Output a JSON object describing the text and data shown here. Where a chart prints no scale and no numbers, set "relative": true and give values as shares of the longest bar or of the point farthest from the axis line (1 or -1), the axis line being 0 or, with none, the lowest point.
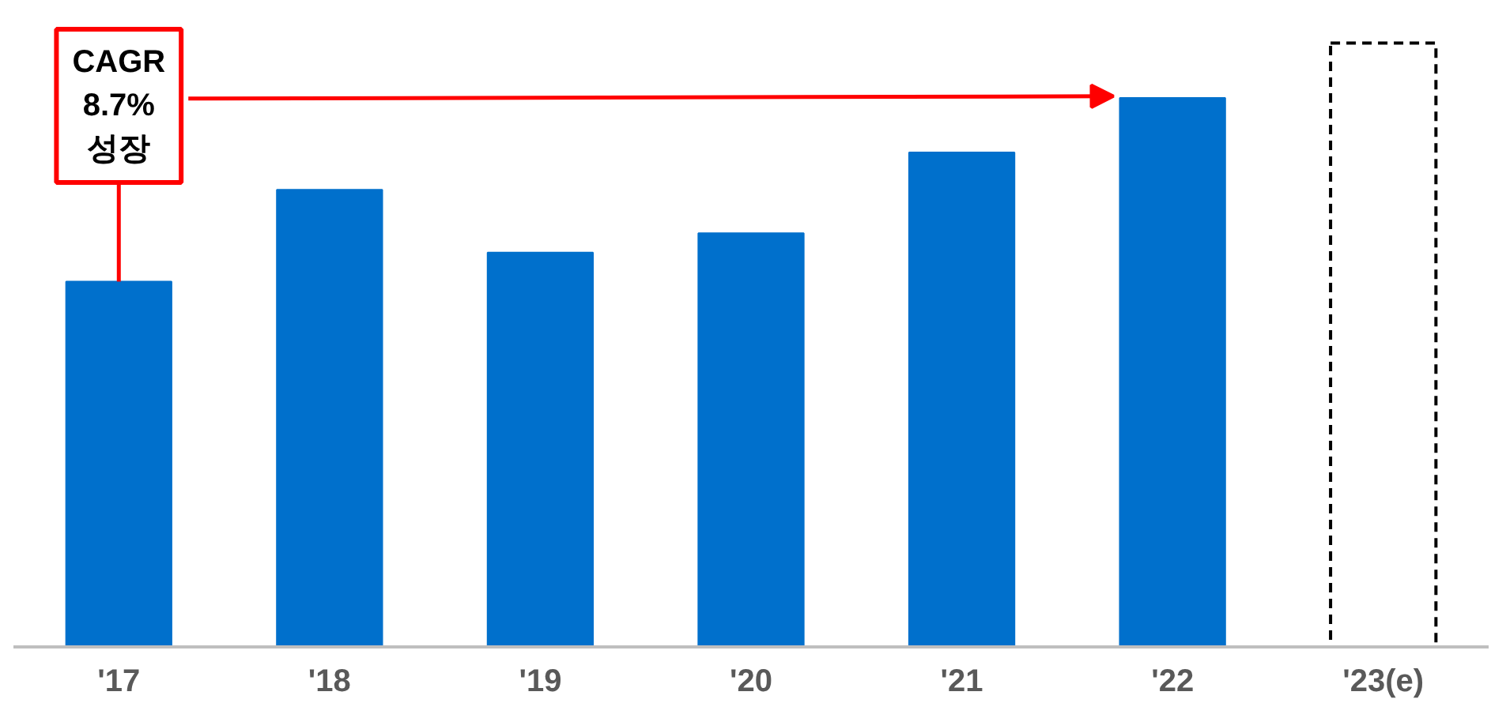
{
  "chart_data": {
    "type": "bar",
    "relative": true,
    "categories": [
      "'17",
      "'18",
      "'19",
      "'20",
      "'21",
      "'22",
      "'23(e)"
    ],
    "series": [
      {
        "color": "#0070cc",
        "values": [
          0.605,
          0.757,
          0.653,
          0.685,
          0.819,
          0.909,
          null
        ]
      },
      {
        "color": "#ffffff",
        "line_style": "dashed",
        "values": [
          null,
          null,
          null,
          null,
          null,
          null,
          1
        ]
      }
    ],
    "annotations": [
      "CAGR\n8.7%\n성장"
    ],
    "grid": false
  }
}
